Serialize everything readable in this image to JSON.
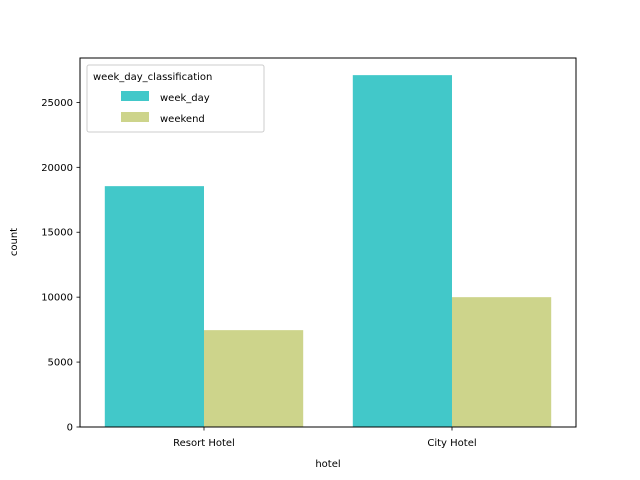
{
  "chart_data": {
    "type": "bar",
    "title": "",
    "xlabel": "hotel",
    "ylabel": "count",
    "categories": [
      "Resort Hotel",
      "City Hotel"
    ],
    "series": [
      {
        "name": "week_day",
        "values": [
          18550,
          27100
        ],
        "color": "#42c8c9"
      },
      {
        "name": "weekend",
        "values": [
          7460,
          10000
        ],
        "color": "#cdd48b"
      }
    ],
    "ylim": [
      0,
      28420
    ],
    "yticks": [
      0,
      5000,
      10000,
      15000,
      20000,
      25000
    ],
    "legend": {
      "title": "week_day_classification",
      "placement": "top-left"
    },
    "grid": false
  }
}
